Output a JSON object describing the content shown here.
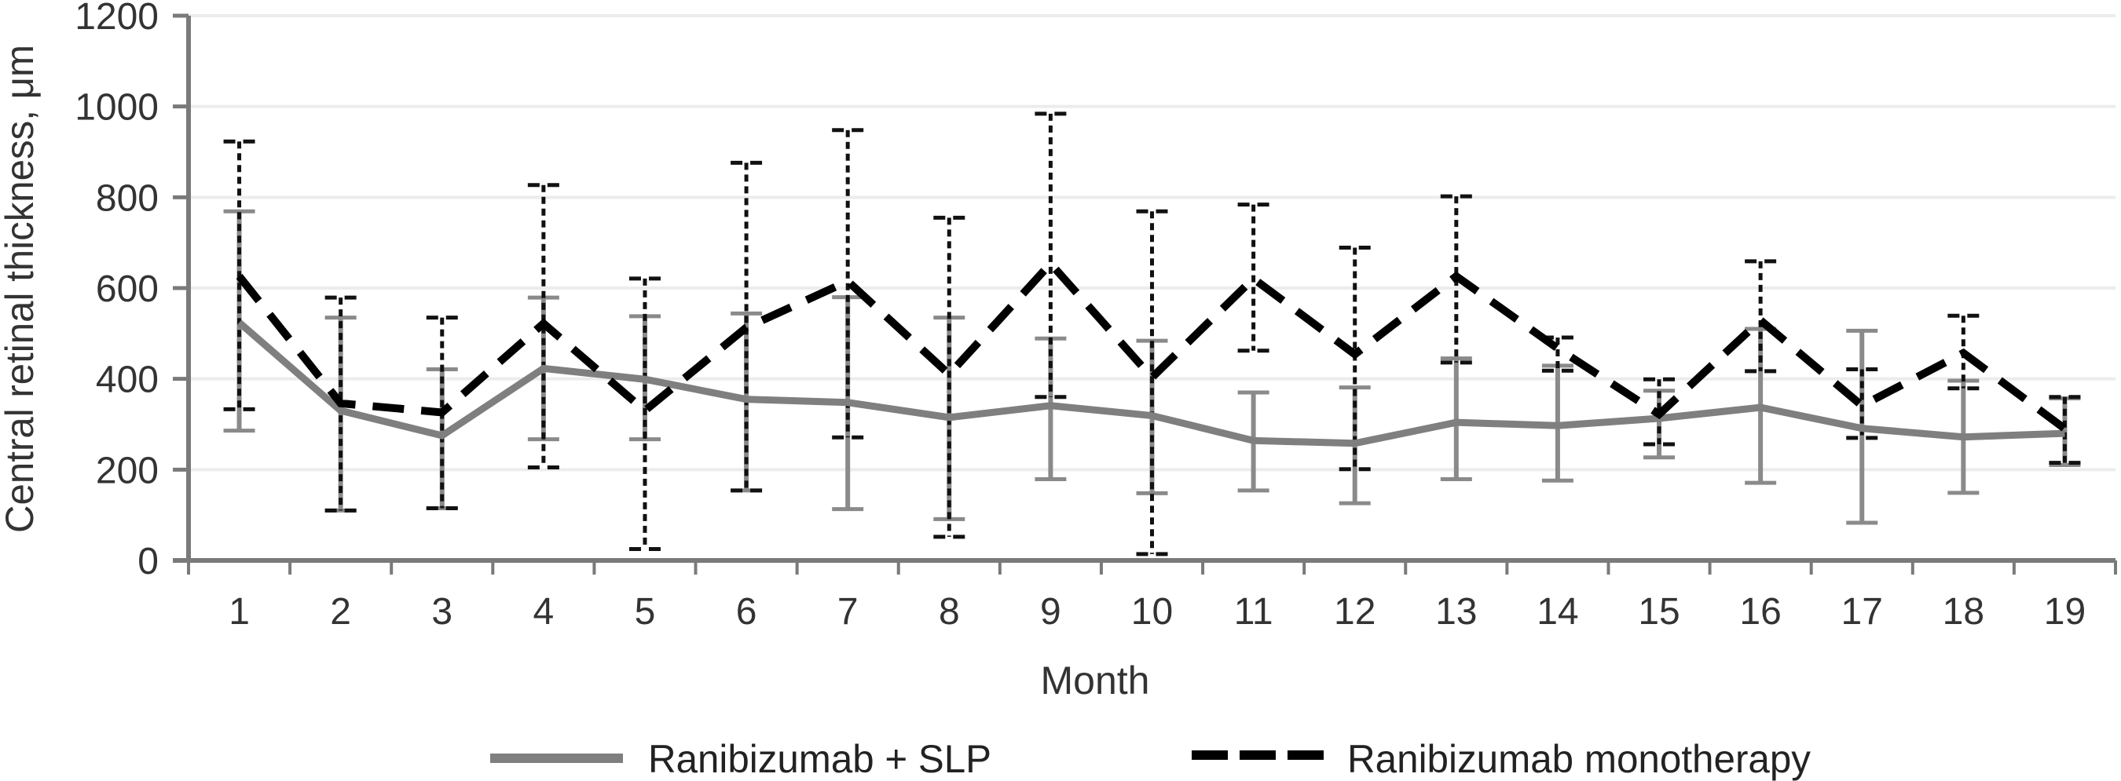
{
  "chart_data": {
    "type": "line",
    "title": "",
    "xlabel": "Month",
    "ylabel": "Central retinal thickness, μm",
    "ylim": [
      0,
      1200
    ],
    "yticks": [
      "0",
      "200",
      "400",
      "600",
      "800",
      "1000",
      "1200"
    ],
    "ytick_values": [
      0,
      200,
      400,
      600,
      800,
      1000,
      1200
    ],
    "categories": [
      "1",
      "2",
      "3",
      "4",
      "5",
      "6",
      "7",
      "8",
      "9",
      "10",
      "11",
      "12",
      "13",
      "14",
      "15",
      "16",
      "17",
      "18",
      "19"
    ],
    "grid": true,
    "legend_position": "bottom",
    "error_bars": true,
    "series": [
      {
        "name": "Ranibizumab + SLP",
        "style": "solid",
        "color": "#7f7f7f",
        "values": [
          524,
          330,
          275,
          423,
          399,
          355,
          348,
          315,
          341,
          319,
          264,
          258,
          304,
          297,
          313,
          337,
          291,
          272,
          280
        ],
        "upper": [
          769,
          535,
          421,
          579,
          538,
          544,
          580,
          535,
          489,
          484,
          370,
          381,
          445,
          429,
          374,
          510,
          506,
          396,
          357
        ],
        "lower": [
          286,
          110,
          115,
          267,
          267,
          154,
          113,
          91,
          179,
          148,
          154,
          126,
          179,
          176,
          227,
          171,
          83,
          149,
          210
        ]
      },
      {
        "name": "Ranibizumab monotherapy",
        "style": "dashed",
        "color": "#000000",
        "values": [
          626,
          346,
          326,
          522,
          330,
          513,
          615,
          410,
          654,
          403,
          621,
          454,
          626,
          467,
          322,
          529,
          341,
          457,
          290
        ],
        "upper": [
          923,
          579,
          535,
          827,
          621,
          876,
          948,
          755,
          984,
          769,
          784,
          689,
          802,
          491,
          399,
          659,
          421,
          539,
          360
        ],
        "lower": [
          333,
          110,
          115,
          205,
          25,
          154,
          271,
          52,
          360,
          14,
          462,
          201,
          436,
          418,
          256,
          417,
          270,
          379,
          215
        ]
      }
    ]
  },
  "colors": {
    "axis": "#7a7a7a",
    "grid": "#ececec",
    "text": "#333333"
  }
}
